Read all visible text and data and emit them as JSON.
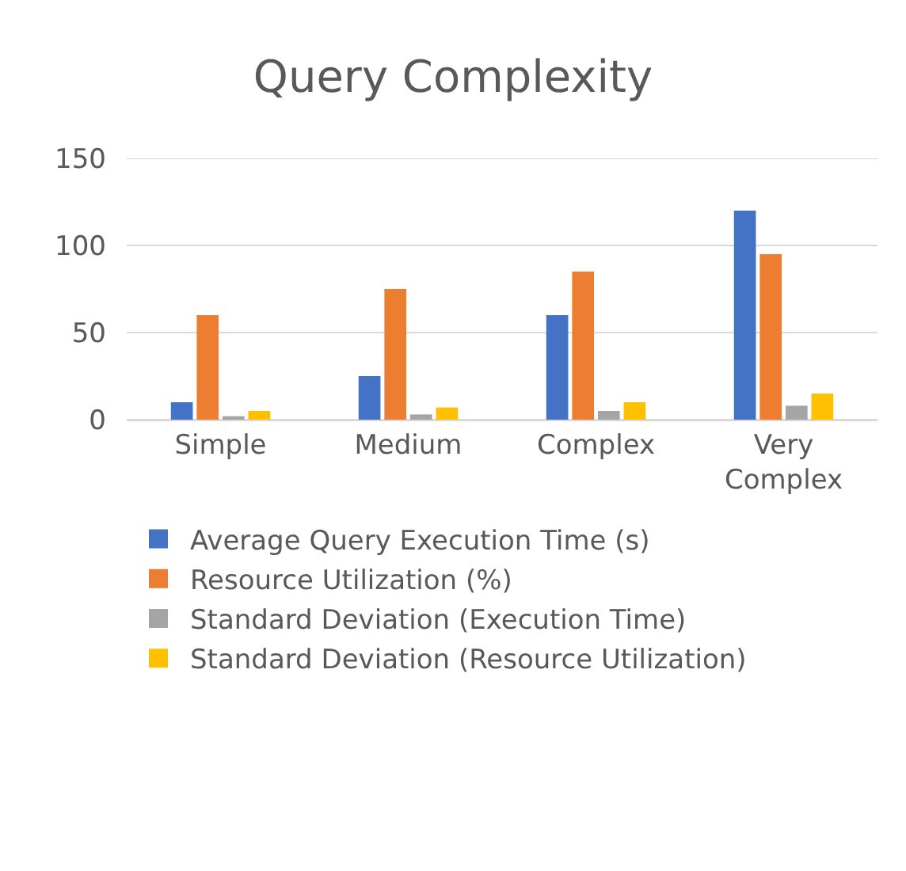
{
  "chart_data": {
    "type": "bar",
    "title": "Query Complexity",
    "categories": [
      "Simple",
      "Medium",
      "Complex",
      "Very Complex"
    ],
    "series": [
      {
        "name": "Average Query Execution Time (s)",
        "color": "#4472c4",
        "values": [
          10,
          25,
          60,
          120
        ]
      },
      {
        "name": "Resource Utilization (%)",
        "color": "#ed7d31",
        "values": [
          60,
          75,
          85,
          95
        ]
      },
      {
        "name": "Standard Deviation (Execution Time)",
        "color": "#a5a5a5",
        "values": [
          2,
          3,
          5,
          8
        ]
      },
      {
        "name": "Standard Deviation (Resource Utilization)",
        "color": "#ffc000",
        "values": [
          5,
          7,
          10,
          15
        ]
      }
    ],
    "ylim": [
      0,
      150
    ],
    "yticks": [
      0,
      50,
      100,
      150
    ],
    "grid": "y",
    "legend": "bottom"
  }
}
